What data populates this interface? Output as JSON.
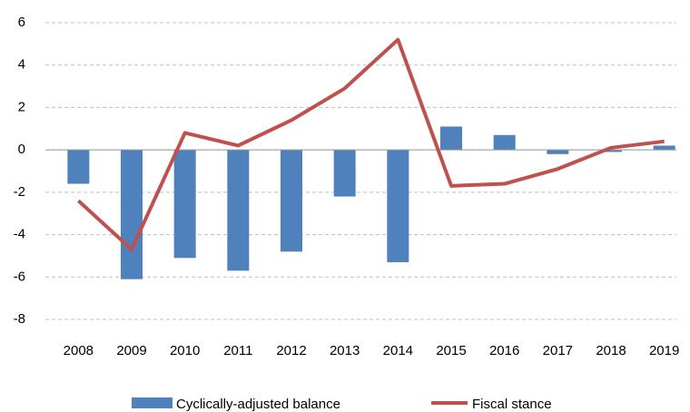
{
  "chart_data": {
    "type": "bar_line",
    "categories": [
      "2008",
      "2009",
      "2010",
      "2011",
      "2012",
      "2013",
      "2014",
      "2015",
      "2016",
      "2017",
      "2018",
      "2019"
    ],
    "series": [
      {
        "name": "Cyclically-adjusted balance",
        "type": "bar",
        "color": "#4f81bd",
        "values": [
          -1.6,
          -6.1,
          -5.1,
          -5.7,
          -4.8,
          -2.2,
          -5.3,
          1.1,
          0.7,
          -0.2,
          -0.1,
          0.2
        ]
      },
      {
        "name": "Fiscal stance",
        "type": "line",
        "color": "#c0504d",
        "values": [
          -2.4,
          -4.7,
          0.8,
          0.2,
          1.4,
          2.9,
          5.2,
          -1.7,
          -1.6,
          -0.9,
          0.1,
          0.4
        ]
      }
    ],
    "ylim": [
      -8,
      6
    ],
    "yticks": [
      -8,
      -6,
      -4,
      -2,
      0,
      2,
      4,
      6
    ],
    "grid": true
  }
}
